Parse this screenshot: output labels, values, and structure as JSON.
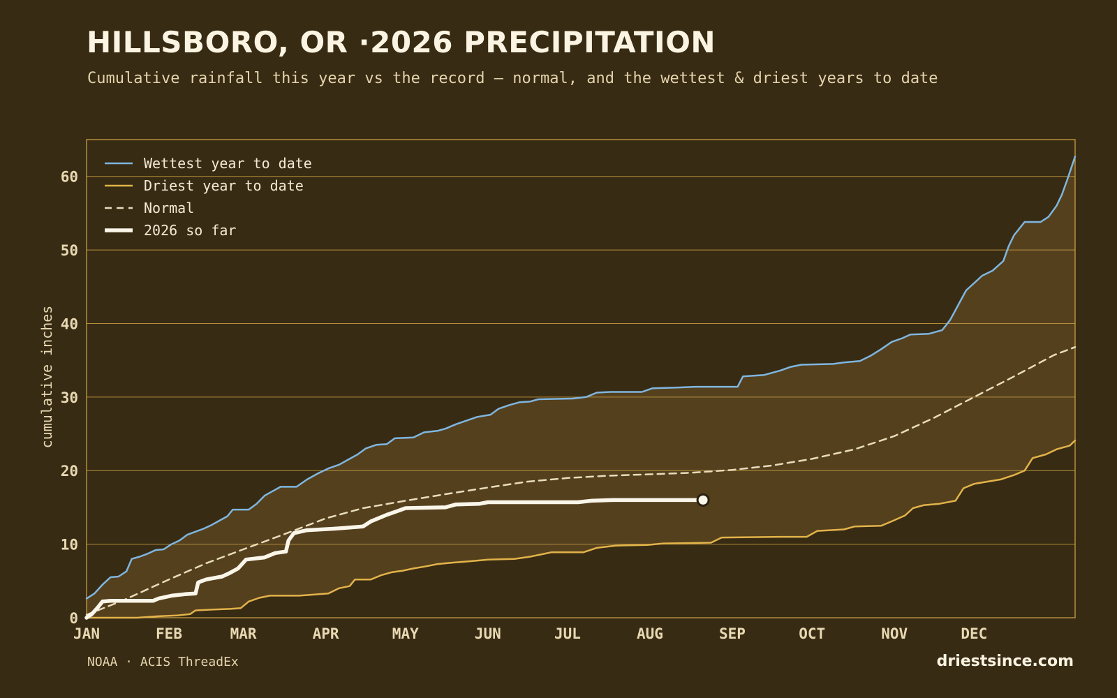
{
  "page": {
    "title": "HILLSBORO, OR ·2026 PRECIPITATION",
    "subtitle": "Cumulative rainfall this year vs the record — normal, and the wettest & driest years to date",
    "source": "NOAA · ACIS ThreadEx",
    "brand": "driestsince.com"
  },
  "colors": {
    "background": "#382b13",
    "band": "#55401e",
    "frame": "#d2a848",
    "grid": "#b38f3c",
    "wettest": "#7fb6e0",
    "driest": "#e2b34a",
    "normal": "#e8dcbc",
    "current": "#fbf6ea",
    "tick_text": "#e8d9b3"
  },
  "chart_data": {
    "type": "line",
    "title": "",
    "xlabel": "",
    "ylabel": "cumulative inches",
    "xlim": [
      1,
      365
    ],
    "ylim": [
      0,
      65
    ],
    "x_is_day_of_year": true,
    "x_ticks": [
      {
        "label": "JAN",
        "day": 1
      },
      {
        "label": "FEB",
        "day": 32
      },
      {
        "label": "MAR",
        "day": 60
      },
      {
        "label": "APR",
        "day": 91
      },
      {
        "label": "MAY",
        "day": 121
      },
      {
        "label": "JUN",
        "day": 152
      },
      {
        "label": "JUL",
        "day": 182
      },
      {
        "label": "AUG",
        "day": 213
      },
      {
        "label": "SEP",
        "day": 244
      },
      {
        "label": "OCT",
        "day": 274
      },
      {
        "label": "NOV",
        "day": 305
      },
      {
        "label": "DEC",
        "day": 335
      }
    ],
    "y_ticks": [
      0,
      10,
      20,
      30,
      40,
      50,
      60
    ],
    "grid": true,
    "legend_position": "top-left",
    "series": [
      {
        "name": "Wettest year to date",
        "key": "wettest",
        "style": "solid",
        "points": [
          [
            1,
            2.6
          ],
          [
            4,
            3.3
          ],
          [
            7,
            4.5
          ],
          [
            10,
            5.5
          ],
          [
            13,
            5.6
          ],
          [
            16,
            6.3
          ],
          [
            18,
            8.0
          ],
          [
            21,
            8.3
          ],
          [
            24,
            8.7
          ],
          [
            27,
            9.2
          ],
          [
            30,
            9.3
          ],
          [
            33,
            10.0
          ],
          [
            36,
            10.5
          ],
          [
            39,
            11.3
          ],
          [
            42,
            11.7
          ],
          [
            45,
            12.1
          ],
          [
            48,
            12.6
          ],
          [
            51,
            13.2
          ],
          [
            54,
            13.8
          ],
          [
            56,
            14.7
          ],
          [
            62,
            14.7
          ],
          [
            65,
            15.5
          ],
          [
            68,
            16.6
          ],
          [
            71,
            17.2
          ],
          [
            74,
            17.8
          ],
          [
            80,
            17.8
          ],
          [
            84,
            18.8
          ],
          [
            88,
            19.6
          ],
          [
            92,
            20.3
          ],
          [
            96,
            20.8
          ],
          [
            100,
            21.6
          ],
          [
            103,
            22.2
          ],
          [
            106,
            23.0
          ],
          [
            110,
            23.5
          ],
          [
            114,
            23.6
          ],
          [
            117,
            24.4
          ],
          [
            124,
            24.5
          ],
          [
            128,
            25.2
          ],
          [
            133,
            25.4
          ],
          [
            136,
            25.7
          ],
          [
            140,
            26.3
          ],
          [
            144,
            26.8
          ],
          [
            148,
            27.3
          ],
          [
            153,
            27.6
          ],
          [
            156,
            28.4
          ],
          [
            160,
            28.9
          ],
          [
            164,
            29.3
          ],
          [
            168,
            29.4
          ],
          [
            171,
            29.7
          ],
          [
            184,
            29.8
          ],
          [
            189,
            30.0
          ],
          [
            193,
            30.6
          ],
          [
            198,
            30.7
          ],
          [
            210,
            30.7
          ],
          [
            214,
            31.2
          ],
          [
            224,
            31.3
          ],
          [
            230,
            31.4
          ],
          [
            240,
            31.4
          ],
          [
            246,
            31.4
          ],
          [
            248,
            32.8
          ],
          [
            256,
            33.0
          ],
          [
            262,
            33.6
          ],
          [
            266,
            34.1
          ],
          [
            270,
            34.4
          ],
          [
            282,
            34.5
          ],
          [
            286,
            34.7
          ],
          [
            292,
            34.9
          ],
          [
            296,
            35.6
          ],
          [
            300,
            36.5
          ],
          [
            304,
            37.5
          ],
          [
            308,
            38.0
          ],
          [
            311,
            38.5
          ],
          [
            318,
            38.6
          ],
          [
            323,
            39.1
          ],
          [
            326,
            40.5
          ],
          [
            329,
            42.5
          ],
          [
            332,
            44.5
          ],
          [
            335,
            45.5
          ],
          [
            338,
            46.5
          ],
          [
            342,
            47.2
          ],
          [
            346,
            48.5
          ],
          [
            348,
            50.5
          ],
          [
            350,
            52.0
          ],
          [
            354,
            53.8
          ],
          [
            360,
            53.8
          ],
          [
            363,
            54.5
          ],
          [
            366,
            56.0
          ],
          [
            368,
            57.5
          ],
          [
            370,
            59.5
          ],
          [
            373,
            62.7
          ]
        ],
        "xlim_scale": "day_of_year"
      },
      {
        "name": "Driest year to date",
        "key": "driest",
        "style": "solid",
        "points": [
          [
            1,
            0.0
          ],
          [
            20,
            0.0
          ],
          [
            28,
            0.2
          ],
          [
            35,
            0.3
          ],
          [
            40,
            0.5
          ],
          [
            42,
            1.0
          ],
          [
            48,
            1.1
          ],
          [
            55,
            1.2
          ],
          [
            59,
            1.3
          ],
          [
            62,
            2.2
          ],
          [
            66,
            2.7
          ],
          [
            70,
            3.0
          ],
          [
            81,
            3.0
          ],
          [
            85,
            3.1
          ],
          [
            92,
            3.3
          ],
          [
            96,
            4.0
          ],
          [
            100,
            4.3
          ],
          [
            102,
            5.2
          ],
          [
            108,
            5.2
          ],
          [
            112,
            5.8
          ],
          [
            116,
            6.2
          ],
          [
            120,
            6.4
          ],
          [
            124,
            6.7
          ],
          [
            129,
            7.0
          ],
          [
            133,
            7.3
          ],
          [
            139,
            7.5
          ],
          [
            146,
            7.7
          ],
          [
            152,
            7.9
          ],
          [
            162,
            8.0
          ],
          [
            168,
            8.3
          ],
          [
            172,
            8.6
          ],
          [
            176,
            8.9
          ],
          [
            188,
            8.9
          ],
          [
            193,
            9.5
          ],
          [
            200,
            9.8
          ],
          [
            212,
            9.9
          ],
          [
            218,
            10.1
          ],
          [
            236,
            10.2
          ],
          [
            240,
            10.9
          ],
          [
            262,
            11.0
          ],
          [
            272,
            11.0
          ],
          [
            276,
            11.8
          ],
          [
            286,
            12.0
          ],
          [
            290,
            12.4
          ],
          [
            300,
            12.5
          ],
          [
            304,
            13.1
          ],
          [
            309,
            13.9
          ],
          [
            312,
            14.9
          ],
          [
            316,
            15.3
          ],
          [
            322,
            15.5
          ],
          [
            328,
            15.9
          ],
          [
            331,
            17.6
          ],
          [
            335,
            18.2
          ],
          [
            340,
            18.5
          ],
          [
            345,
            18.8
          ],
          [
            350,
            19.4
          ],
          [
            354,
            20.0
          ],
          [
            357,
            21.7
          ],
          [
            362,
            22.2
          ],
          [
            366,
            22.9
          ],
          [
            371,
            23.4
          ],
          [
            373,
            24.1
          ]
        ],
        "xlim_scale": "day_of_year"
      },
      {
        "name": "Normal",
        "key": "normal",
        "style": "dashed",
        "points": [
          [
            1,
            0.4
          ],
          [
            15,
            2.4
          ],
          [
            32,
            5.2
          ],
          [
            46,
            7.4
          ],
          [
            60,
            9.3
          ],
          [
            75,
            11.3
          ],
          [
            91,
            13.5
          ],
          [
            105,
            14.9
          ],
          [
            121,
            15.9
          ],
          [
            136,
            16.8
          ],
          [
            152,
            17.7
          ],
          [
            167,
            18.5
          ],
          [
            182,
            19.0
          ],
          [
            197,
            19.3
          ],
          [
            213,
            19.5
          ],
          [
            228,
            19.7
          ],
          [
            244,
            20.1
          ],
          [
            259,
            20.7
          ],
          [
            274,
            21.6
          ],
          [
            290,
            22.9
          ],
          [
            305,
            24.7
          ],
          [
            320,
            27.2
          ],
          [
            335,
            30.0
          ],
          [
            350,
            32.8
          ],
          [
            365,
            35.7
          ],
          [
            373,
            36.8
          ]
        ],
        "xlim_scale": "day_of_year"
      },
      {
        "name": "2026 so far",
        "key": "current",
        "style": "thick",
        "points": [
          [
            1,
            0.0
          ],
          [
            3,
            0.5
          ],
          [
            5,
            1.3
          ],
          [
            7,
            2.2
          ],
          [
            10,
            2.3
          ],
          [
            26,
            2.3
          ],
          [
            28,
            2.6
          ],
          [
            33,
            3.0
          ],
          [
            38,
            3.2
          ],
          [
            42,
            3.3
          ],
          [
            43,
            4.8
          ],
          [
            46,
            5.2
          ],
          [
            52,
            5.6
          ],
          [
            55,
            6.1
          ],
          [
            58,
            6.7
          ],
          [
            61,
            7.9
          ],
          [
            68,
            8.2
          ],
          [
            72,
            8.8
          ],
          [
            76,
            9.0
          ],
          [
            77,
            10.5
          ],
          [
            79,
            11.5
          ],
          [
            84,
            11.9
          ],
          [
            94,
            12.1
          ],
          [
            98,
            12.2
          ],
          [
            105,
            12.4
          ],
          [
            108,
            13.1
          ],
          [
            114,
            14.0
          ],
          [
            118,
            14.5
          ],
          [
            121,
            14.9
          ],
          [
            136,
            15.0
          ],
          [
            140,
            15.4
          ],
          [
            149,
            15.5
          ],
          [
            152,
            15.7
          ],
          [
            186,
            15.7
          ],
          [
            191,
            15.9
          ],
          [
            199,
            16.0
          ],
          [
            233,
            16.0
          ]
        ],
        "xlim_scale": "day_of_year"
      }
    ],
    "current_marker": {
      "day": 233,
      "value": 16.0
    }
  }
}
